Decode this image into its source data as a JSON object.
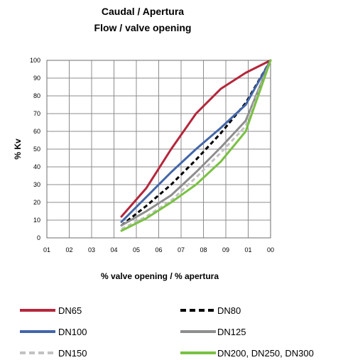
{
  "chart_data": {
    "type": "line",
    "title": "Caudal / Apertura",
    "subtitle": "Flow / valve opening",
    "xlabel": "% valve opening / % apertura",
    "ylabel": "% Kv",
    "x_tick_labels": [
      "01",
      "02",
      "03",
      "04",
      "05",
      "06",
      "07",
      "08",
      "09",
      "01",
      "00"
    ],
    "y_tick_labels": [
      "0",
      "10",
      "20",
      "30",
      "40",
      "50",
      "60",
      "70",
      "80",
      "90",
      "100"
    ],
    "xlim": [
      10,
      100
    ],
    "ylim": [
      0,
      100
    ],
    "grid": true,
    "legend_position": "bottom",
    "series": [
      {
        "name": "DN65",
        "color": "#b5263b",
        "dash": "solid",
        "x": [
          40,
          50,
          60,
          70,
          80,
          90,
          100
        ],
        "y": [
          12,
          28,
          50,
          70,
          84,
          93,
          100
        ]
      },
      {
        "name": "DN80",
        "color": "#000000",
        "dash": "dashed",
        "x": [
          40,
          50,
          60,
          70,
          80,
          90,
          100
        ],
        "y": [
          7,
          18,
          30,
          44,
          59,
          76,
          100
        ]
      },
      {
        "name": "DN100",
        "color": "#4366a9",
        "dash": "solid",
        "x": [
          40,
          50,
          60,
          70,
          80,
          90,
          100
        ],
        "y": [
          9,
          23,
          37,
          50,
          62,
          75,
          100
        ]
      },
      {
        "name": "DN125",
        "color": "#8e8e8e",
        "dash": "solid",
        "x": [
          40,
          50,
          60,
          70,
          80,
          90,
          100
        ],
        "y": [
          7,
          15,
          24,
          37,
          51,
          66,
          100
        ]
      },
      {
        "name": "DN150",
        "color": "#c2c2c2",
        "dash": "dashed",
        "x": [
          40,
          50,
          60,
          70,
          80,
          90,
          100
        ],
        "y": [
          5,
          12,
          21,
          34,
          48,
          63,
          100
        ]
      },
      {
        "name": "DN200, DN250, DN300",
        "color": "#7ac143",
        "dash": "solid",
        "x": [
          40,
          50,
          60,
          70,
          80,
          90,
          100
        ],
        "y": [
          4,
          11,
          20,
          30,
          43,
          60,
          100
        ]
      }
    ]
  }
}
